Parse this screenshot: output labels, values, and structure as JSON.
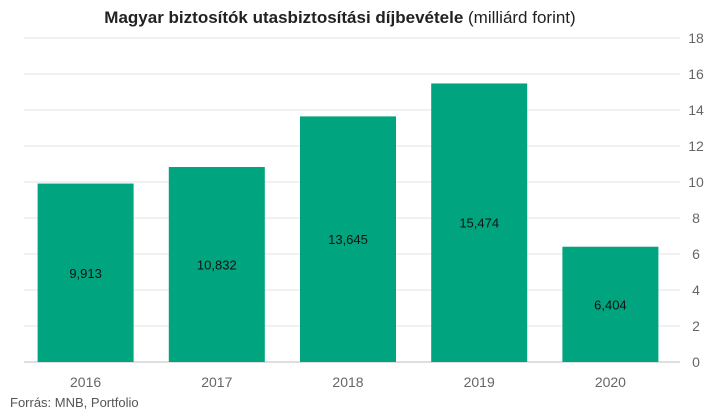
{
  "chart_data": {
    "type": "bar",
    "title_bold": "Magyar biztosítók utasbiztosítási díjbevétele",
    "title_unit": "(milliárd forint)",
    "categories": [
      "2016",
      "2017",
      "2018",
      "2019",
      "2020"
    ],
    "values": [
      9.913,
      10.832,
      13.645,
      15.474,
      6.404
    ],
    "data_labels": [
      "9,913",
      "10,832",
      "13,645",
      "15,474",
      "6,404"
    ],
    "ylim": [
      0,
      18
    ],
    "yticks": [
      0,
      2,
      4,
      6,
      8,
      10,
      12,
      14,
      16,
      18
    ],
    "y_axis_side": "right",
    "grid": true,
    "bar_color": "#00a47e",
    "source": "Forrás: MNB, Portfolio"
  }
}
